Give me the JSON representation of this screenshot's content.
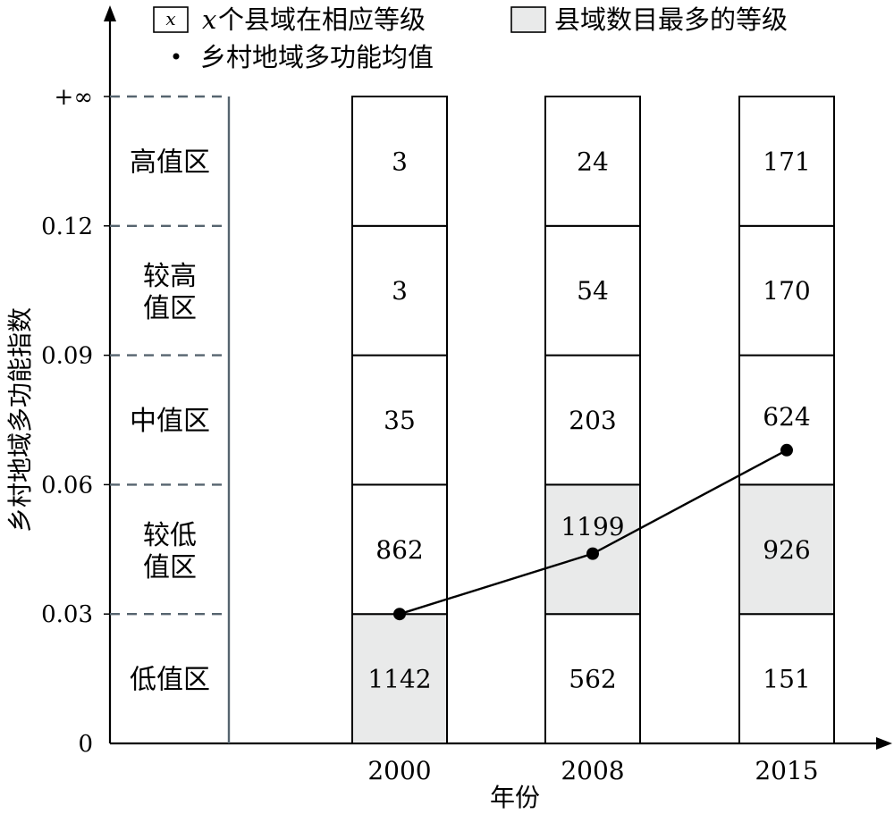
{
  "chart_data": {
    "type": "bar",
    "xlabel": "年份",
    "ylabel": "乡村地域多功能指数",
    "categories": [
      "2000",
      "2008",
      "2015"
    ],
    "y_ticks": [
      "0",
      "0.03",
      "0.06",
      "0.09",
      "0.12",
      "+∞"
    ],
    "zones": [
      "低值区",
      "较低值区",
      "中值区",
      "较高值区",
      "高值区"
    ],
    "zone_bounds": [
      [
        0,
        0.03
      ],
      [
        0.03,
        0.06
      ],
      [
        0.06,
        0.09
      ],
      [
        0.09,
        0.12
      ],
      [
        0.12,
        "+∞"
      ]
    ],
    "counts": [
      [
        1142,
        862,
        35,
        3,
        3
      ],
      [
        562,
        1199,
        203,
        54,
        24
      ],
      [
        151,
        926,
        624,
        170,
        171
      ]
    ],
    "highlight_zone_index": [
      0,
      1,
      1
    ],
    "mean_values": [
      0.03,
      0.044,
      0.068
    ],
    "highlight_color": "#e9eaea",
    "legend": {
      "count_label": "个县域在相应等级",
      "count_symbol": "x",
      "highlight_label": "县域数目最多的等级",
      "mean_label": "乡村地域多功能均值"
    }
  }
}
